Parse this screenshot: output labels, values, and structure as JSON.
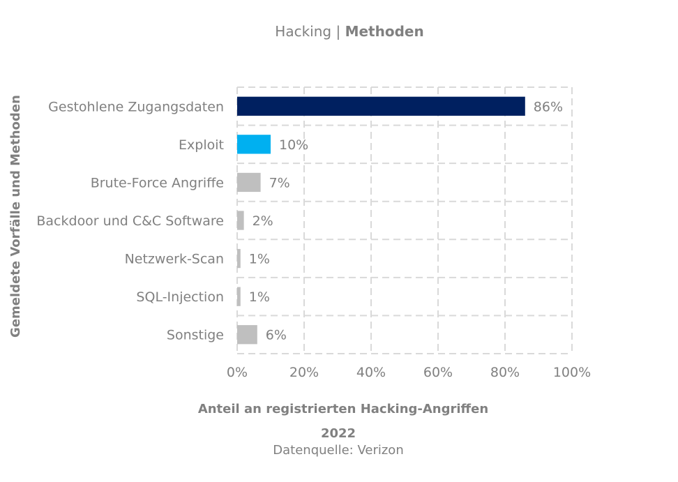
{
  "chart_data": {
    "type": "bar",
    "orientation": "horizontal",
    "title_regular": "Hacking | ",
    "title_bold": "Methoden",
    "xlabel": "Anteil an registrierten Hacking-Angriffen",
    "ylabel": "Gemeldete Vorfälle und Methoden",
    "subtitle_year": "2022",
    "source": "Datenquelle: Verizon",
    "categories": [
      "Gestohlene Zugangsdaten",
      "Exploit",
      "Brute-Force Angriffe",
      "Backdoor und C&C Software",
      "Netzwerk-Scan",
      "SQL-Injection",
      "Sonstige"
    ],
    "values": [
      86,
      10,
      7,
      2,
      1,
      1,
      6
    ],
    "value_labels": [
      "86%",
      "10%",
      "7%",
      "2%",
      "1%",
      "1%",
      "6%"
    ],
    "colors": [
      "#002060",
      "#00B0F0",
      "#BFBFBF",
      "#BFBFBF",
      "#BFBFBF",
      "#BFBFBF",
      "#BFBFBF"
    ],
    "xlim": [
      0,
      100
    ],
    "xticks": [
      0,
      20,
      40,
      60,
      80,
      100
    ],
    "xtick_labels": [
      "0%",
      "20%",
      "40%",
      "60%",
      "80%",
      "100%"
    ],
    "grid": true,
    "grid_style": "dashed",
    "legend": false
  }
}
